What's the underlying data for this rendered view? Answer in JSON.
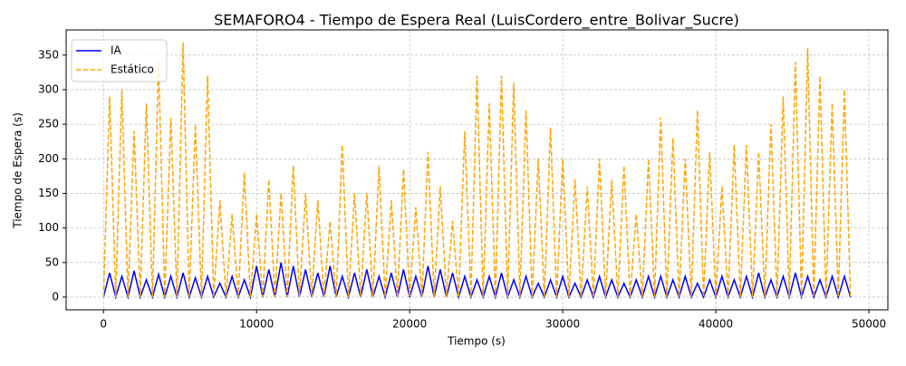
{
  "chart_data": {
    "type": "line",
    "title": "SEMAFORO4 - Tiempo de Espera Real (LuisCordero_entre_Bolivar_Sucre)",
    "xlabel": "Tiempo (s)",
    "ylabel": "Tiempo de Espera (s)",
    "x": [
      0,
      400,
      800,
      1200,
      1600,
      2000,
      2400,
      2800,
      3200,
      3600,
      4000,
      4400,
      4800,
      5200,
      5600,
      6000,
      6400,
      6800,
      7200,
      7600,
      8000,
      8400,
      8800,
      9200,
      9600,
      10000,
      10400,
      10800,
      11200,
      11600,
      12000,
      12400,
      12800,
      13200,
      13600,
      14000,
      14400,
      14800,
      15200,
      15600,
      16000,
      16400,
      16800,
      17200,
      17600,
      18000,
      18400,
      18800,
      19200,
      19600,
      20000,
      20400,
      20800,
      21200,
      21600,
      22000,
      22400,
      22800,
      23200,
      23600,
      24000,
      24400,
      24800,
      25200,
      25600,
      26000,
      26400,
      26800,
      27200,
      27600,
      28000,
      28400,
      28800,
      29200,
      29600,
      30000,
      30400,
      30800,
      31200,
      31600,
      32000,
      32400,
      32800,
      33200,
      33600,
      34000,
      34400,
      34800,
      35200,
      35600,
      36000,
      36400,
      36800,
      37200,
      37600,
      38000,
      38400,
      38800,
      39200,
      39600,
      40000,
      40400,
      40800,
      41200,
      41600,
      42000,
      42400,
      42800,
      43200,
      43600,
      44000,
      44400,
      44800,
      45200,
      45600,
      46000,
      46400,
      46800,
      47200,
      47600,
      48000,
      48400,
      48800
    ],
    "series": [
      {
        "name": "IA",
        "color": "#0000ff",
        "dashed": false,
        "values": [
          0,
          35,
          0,
          30,
          0,
          38,
          0,
          25,
          0,
          33,
          0,
          30,
          0,
          35,
          0,
          28,
          0,
          30,
          0,
          20,
          0,
          30,
          0,
          25,
          0,
          45,
          0,
          40,
          0,
          50,
          0,
          45,
          0,
          40,
          0,
          35,
          0,
          45,
          0,
          30,
          0,
          35,
          0,
          40,
          0,
          30,
          0,
          35,
          0,
          40,
          0,
          30,
          0,
          45,
          0,
          40,
          0,
          35,
          0,
          30,
          0,
          25,
          0,
          30,
          0,
          35,
          0,
          25,
          0,
          30,
          0,
          20,
          0,
          25,
          0,
          30,
          0,
          20,
          0,
          25,
          0,
          30,
          0,
          25,
          0,
          20,
          0,
          25,
          0,
          30,
          0,
          30,
          0,
          25,
          0,
          30,
          0,
          20,
          0,
          25,
          0,
          30,
          0,
          25,
          0,
          30,
          0,
          35,
          0,
          25,
          0,
          30,
          0,
          35,
          0,
          30,
          0,
          25,
          0,
          30,
          0,
          30,
          0
        ]
      },
      {
        "name": "Estático",
        "color": "#ffa500",
        "dashed": true,
        "values": [
          0,
          290,
          0,
          300,
          0,
          240,
          0,
          280,
          0,
          340,
          0,
          260,
          0,
          368,
          0,
          250,
          0,
          320,
          0,
          140,
          0,
          120,
          0,
          180,
          0,
          120,
          0,
          170,
          0,
          150,
          0,
          190,
          0,
          150,
          0,
          140,
          0,
          110,
          0,
          220,
          0,
          150,
          0,
          150,
          0,
          190,
          0,
          140,
          0,
          185,
          0,
          130,
          0,
          210,
          0,
          160,
          0,
          110,
          0,
          240,
          0,
          320,
          0,
          280,
          0,
          320,
          0,
          310,
          0,
          270,
          0,
          200,
          0,
          245,
          0,
          200,
          0,
          170,
          0,
          160,
          0,
          200,
          0,
          170,
          0,
          190,
          0,
          120,
          0,
          200,
          0,
          260,
          0,
          230,
          0,
          200,
          0,
          270,
          0,
          210,
          0,
          160,
          0,
          220,
          0,
          220,
          0,
          210,
          0,
          250,
          0,
          290,
          0,
          340,
          0,
          360,
          0,
          320,
          0,
          280,
          0,
          300,
          0
        ]
      }
    ],
    "xlim": [
      -2440,
      51240
    ],
    "ylim": [
      -18.4,
      386.4
    ],
    "xticks": [
      0,
      10000,
      20000,
      30000,
      40000,
      50000
    ],
    "yticks": [
      0,
      50,
      100,
      150,
      200,
      250,
      300,
      350
    ],
    "grid": true,
    "legend": "upper left"
  }
}
